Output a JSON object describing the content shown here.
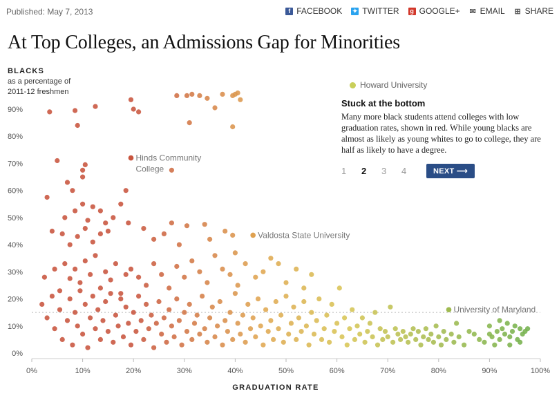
{
  "meta": {
    "published": "Published: May 7, 2013"
  },
  "share": [
    {
      "label": "FACEBOOK",
      "icon": "facebook-icon",
      "glyph": "f",
      "color": "#3b5998"
    },
    {
      "label": "TWITTER",
      "icon": "twitter-icon",
      "glyph": "✦",
      "color": "#2aa3ef"
    },
    {
      "label": "GOOGLE+",
      "icon": "google-plus-icon",
      "glyph": "g",
      "color": "#d2372a"
    },
    {
      "label": "EMAIL",
      "icon": "email-icon",
      "glyph": "✉",
      "color": "#ffffff"
    },
    {
      "label": "SHARE",
      "icon": "share-icon",
      "glyph": "⊞",
      "color": "#ffffff"
    }
  ],
  "title": "At Top Colleges, an Admissions Gap for Minorities",
  "y_header": {
    "title": "BLACKS",
    "sub1": "as a percentage of",
    "sub2": "2011-12 freshmen"
  },
  "panel": {
    "legend_label": "Howard University",
    "title": "Stuck at the bottom",
    "body": "Many more black students attend colleges with low graduation rates, shown in red. While young blacks are almost as likely as young whites to go to college, they are half as likely to have a degree.",
    "pages": [
      "1",
      "2",
      "3",
      "4"
    ],
    "active_page": "2",
    "next_label": "NEXT ⟶"
  },
  "colors": {
    "low_grad": "#c8543e",
    "mid_grad": "#e0a651",
    "high_grad": "#6cb04c",
    "highlight": "#c9cf5a",
    "next_button": "#2a4d86"
  },
  "chart_data": {
    "type": "scatter",
    "xlabel": "GRADUATION RATE",
    "ylabel": "BLACKS",
    "xlim": [
      0,
      100
    ],
    "ylim": [
      0,
      95
    ],
    "x_ticks": [
      "0%",
      "10%",
      "20%",
      "30%",
      "40%",
      "50%",
      "60%",
      "70%",
      "80%",
      "90%",
      "100%"
    ],
    "y_ticks": [
      "0%",
      "10%",
      "20%",
      "30%",
      "40%",
      "50%",
      "60%",
      "70%",
      "80%",
      "90%"
    ],
    "reference_line_y": 15,
    "annotations": [
      {
        "label_lines": [
          "Hinds Community",
          "College"
        ],
        "x": 19.5,
        "y": 72
      },
      {
        "label_lines": [
          "Valdosta State University"
        ],
        "x": 43.5,
        "y": 43.5
      },
      {
        "label_lines": [
          "University of Maryland"
        ],
        "x": 82,
        "y": 16
      }
    ],
    "points": [
      [
        3.5,
        89
      ],
      [
        8.5,
        89.5
      ],
      [
        12.5,
        91
      ],
      [
        9,
        84
      ],
      [
        19.5,
        93.5
      ],
      [
        20,
        90
      ],
      [
        21,
        89
      ],
      [
        28.5,
        95
      ],
      [
        30.5,
        95
      ],
      [
        31.5,
        95.5
      ],
      [
        33,
        95
      ],
      [
        34.5,
        94
      ],
      [
        37.5,
        95.5
      ],
      [
        39.5,
        95
      ],
      [
        40,
        95.5
      ],
      [
        40.5,
        96
      ],
      [
        41,
        93.5
      ],
      [
        36,
        90.5
      ],
      [
        31,
        85
      ],
      [
        39.5,
        83.5
      ],
      [
        5,
        71
      ],
      [
        10.5,
        69.5
      ],
      [
        10,
        67.5
      ],
      [
        7,
        63
      ],
      [
        10,
        65
      ],
      [
        8,
        60
      ],
      [
        3,
        57.5
      ],
      [
        18.5,
        60
      ],
      [
        17.5,
        55
      ],
      [
        19.5,
        72
      ],
      [
        27.5,
        67.5
      ],
      [
        4,
        45
      ],
      [
        6,
        44
      ],
      [
        6.5,
        50
      ],
      [
        8.5,
        52.5
      ],
      [
        10,
        55
      ],
      [
        11,
        49
      ],
      [
        12,
        54
      ],
      [
        13.5,
        52.5
      ],
      [
        14.5,
        48
      ],
      [
        7.5,
        40
      ],
      [
        9,
        43
      ],
      [
        10.5,
        46
      ],
      [
        12,
        41
      ],
      [
        13.5,
        44
      ],
      [
        15,
        45
      ],
      [
        16,
        50
      ],
      [
        19,
        48
      ],
      [
        22,
        46
      ],
      [
        24,
        42
      ],
      [
        26,
        44
      ],
      [
        27.5,
        48
      ],
      [
        30.5,
        47
      ],
      [
        34,
        47.5
      ],
      [
        38,
        45
      ],
      [
        39.5,
        43.5
      ],
      [
        43.5,
        43.5
      ],
      [
        35,
        42
      ],
      [
        29,
        40
      ],
      [
        40,
        37
      ],
      [
        2.5,
        28
      ],
      [
        4.5,
        31
      ],
      [
        5.5,
        23
      ],
      [
        6.5,
        33
      ],
      [
        7.5,
        27.5
      ],
      [
        8.5,
        31
      ],
      [
        9.5,
        26
      ],
      [
        10.5,
        34
      ],
      [
        11.5,
        29
      ],
      [
        12.5,
        36
      ],
      [
        13.5,
        24
      ],
      [
        14.5,
        30
      ],
      [
        15.5,
        27
      ],
      [
        16.5,
        33
      ],
      [
        17.5,
        22
      ],
      [
        18.5,
        29
      ],
      [
        19.5,
        31
      ],
      [
        21,
        28
      ],
      [
        22.5,
        25
      ],
      [
        24,
        33
      ],
      [
        25.5,
        29
      ],
      [
        27,
        24
      ],
      [
        28.5,
        32
      ],
      [
        30,
        28
      ],
      [
        31.5,
        34
      ],
      [
        33,
        30
      ],
      [
        34.5,
        26
      ],
      [
        36,
        36
      ],
      [
        37.5,
        31
      ],
      [
        39,
        29
      ],
      [
        40.5,
        25
      ],
      [
        42,
        33
      ],
      [
        44,
        28
      ],
      [
        45.5,
        30
      ],
      [
        47,
        35
      ],
      [
        48.5,
        33
      ],
      [
        50,
        26
      ],
      [
        52,
        31
      ],
      [
        53.5,
        24
      ],
      [
        55,
        29
      ],
      [
        2,
        18
      ],
      [
        3,
        13
      ],
      [
        4,
        21
      ],
      [
        4.5,
        9
      ],
      [
        5.5,
        16
      ],
      [
        6,
        5
      ],
      [
        7,
        12
      ],
      [
        7.5,
        20
      ],
      [
        8,
        3
      ],
      [
        8.5,
        15
      ],
      [
        9,
        10
      ],
      [
        9.5,
        23
      ],
      [
        10,
        7
      ],
      [
        10.5,
        18
      ],
      [
        11,
        2
      ],
      [
        11.5,
        13
      ],
      [
        12,
        21
      ],
      [
        12.5,
        9
      ],
      [
        13,
        16
      ],
      [
        13.5,
        5
      ],
      [
        14,
        12
      ],
      [
        14.5,
        19
      ],
      [
        15,
        8
      ],
      [
        15.5,
        22
      ],
      [
        16,
        4
      ],
      [
        16.5,
        14
      ],
      [
        17,
        10
      ],
      [
        17.5,
        20
      ],
      [
        18,
        6
      ],
      [
        18.5,
        17
      ],
      [
        19,
        11
      ],
      [
        19.5,
        3
      ],
      [
        20,
        15
      ],
      [
        20.5,
        8
      ],
      [
        21,
        21
      ],
      [
        21.5,
        12
      ],
      [
        22,
        5
      ],
      [
        22.5,
        18
      ],
      [
        23,
        9
      ],
      [
        23.5,
        14
      ],
      [
        24,
        2
      ],
      [
        24.5,
        11
      ],
      [
        25,
        19
      ],
      [
        25.5,
        7
      ],
      [
        26,
        13
      ],
      [
        26.5,
        4
      ],
      [
        27,
        16
      ],
      [
        27.5,
        10
      ],
      [
        28,
        6
      ],
      [
        28.5,
        20
      ],
      [
        29,
        12
      ],
      [
        29.5,
        3
      ],
      [
        30,
        15
      ],
      [
        30.5,
        8
      ],
      [
        31,
        18
      ],
      [
        31.5,
        5
      ],
      [
        32,
        11
      ],
      [
        32.5,
        14
      ],
      [
        33,
        7
      ],
      [
        33.5,
        21
      ],
      [
        34,
        9
      ],
      [
        34.5,
        4
      ],
      [
        35,
        13
      ],
      [
        35.5,
        17
      ],
      [
        36,
        6
      ],
      [
        36.5,
        10
      ],
      [
        37,
        19
      ],
      [
        37.5,
        3
      ],
      [
        38,
        12
      ],
      [
        38.5,
        8
      ],
      [
        39,
        15
      ],
      [
        39.5,
        5
      ],
      [
        40,
        22
      ],
      [
        40.5,
        11
      ],
      [
        41,
        7
      ],
      [
        41.5,
        14
      ],
      [
        42,
        4
      ],
      [
        42.5,
        18
      ],
      [
        43,
        9
      ],
      [
        43.5,
        13
      ],
      [
        44,
        6
      ],
      [
        44.5,
        20
      ],
      [
        45,
        10
      ],
      [
        45.5,
        3
      ],
      [
        46,
        16
      ],
      [
        46.5,
        8
      ],
      [
        47,
        12
      ],
      [
        47.5,
        5
      ],
      [
        48,
        19
      ],
      [
        48.5,
        9
      ],
      [
        49,
        14
      ],
      [
        49.5,
        4
      ],
      [
        50,
        21
      ],
      [
        50.5,
        7
      ],
      [
        51,
        11
      ],
      [
        51.5,
        17
      ],
      [
        52,
        5
      ],
      [
        52.5,
        13
      ],
      [
        53,
        8
      ],
      [
        53.5,
        19
      ],
      [
        54,
        10
      ],
      [
        54.5,
        3
      ],
      [
        55,
        15
      ],
      [
        55.5,
        7
      ],
      [
        56,
        12
      ],
      [
        56.5,
        20
      ],
      [
        57,
        5
      ],
      [
        57.5,
        9
      ],
      [
        58,
        14
      ],
      [
        58.5,
        4
      ],
      [
        59,
        18
      ],
      [
        59.5,
        8
      ],
      [
        60,
        11
      ],
      [
        60.5,
        24
      ],
      [
        61,
        6
      ],
      [
        61.5,
        13
      ],
      [
        62,
        3
      ],
      [
        62.5,
        9
      ],
      [
        63,
        16
      ],
      [
        63.5,
        5
      ],
      [
        64,
        10
      ],
      [
        64.5,
        7
      ],
      [
        65,
        13
      ],
      [
        65.5,
        4
      ],
      [
        66,
        8
      ],
      [
        66.5,
        11
      ],
      [
        67,
        6
      ],
      [
        67.5,
        15
      ],
      [
        68,
        3
      ],
      [
        68.5,
        9
      ],
      [
        69,
        5
      ],
      [
        69.5,
        8
      ],
      [
        70,
        6
      ],
      [
        70.5,
        17
      ],
      [
        71,
        4
      ],
      [
        71.5,
        9
      ],
      [
        72,
        7
      ],
      [
        72.5,
        5
      ],
      [
        73,
        8
      ],
      [
        73.5,
        6
      ],
      [
        74,
        4
      ],
      [
        74.5,
        7
      ],
      [
        75,
        9
      ],
      [
        75.5,
        5
      ],
      [
        76,
        8
      ],
      [
        76.5,
        3
      ],
      [
        77,
        6
      ],
      [
        77.5,
        9
      ],
      [
        78,
        5
      ],
      [
        78.5,
        7
      ],
      [
        79,
        4
      ],
      [
        79.5,
        10
      ],
      [
        80,
        6
      ],
      [
        80.5,
        3
      ],
      [
        81,
        8
      ],
      [
        81.5,
        5
      ],
      [
        82,
        16
      ],
      [
        82.5,
        7
      ],
      [
        83,
        4
      ],
      [
        83.5,
        11
      ],
      [
        84,
        6
      ],
      [
        85,
        3
      ],
      [
        86,
        8
      ],
      [
        87,
        7
      ],
      [
        88,
        5
      ],
      [
        89,
        4
      ],
      [
        90,
        10
      ],
      [
        90.5,
        6
      ],
      [
        91,
        3
      ],
      [
        91.5,
        8
      ],
      [
        92,
        5
      ],
      [
        92.5,
        9
      ],
      [
        93,
        7
      ],
      [
        93.5,
        11
      ],
      [
        94,
        6
      ],
      [
        94.5,
        8
      ],
      [
        95,
        10
      ],
      [
        95.5,
        5
      ],
      [
        96,
        9
      ],
      [
        96.5,
        7
      ],
      [
        97,
        8
      ],
      [
        97.5,
        9
      ],
      [
        96,
        4
      ],
      [
        94,
        3
      ],
      [
        92,
        12
      ],
      [
        90,
        7
      ]
    ]
  }
}
